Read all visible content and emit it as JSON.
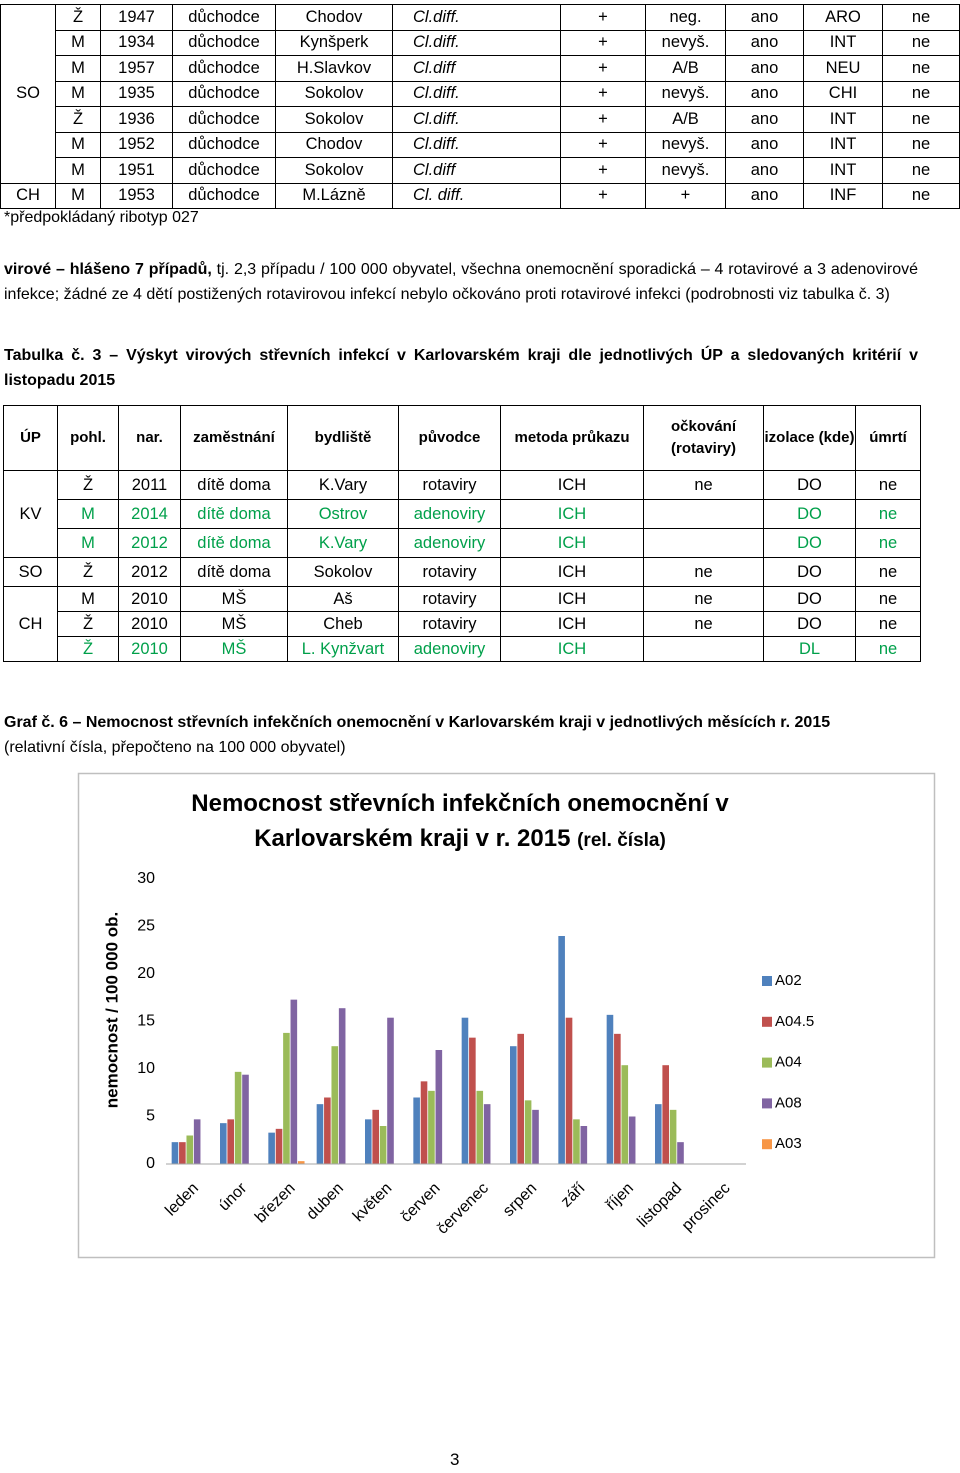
{
  "table1": {
    "groups": [
      {
        "region": "SO",
        "rows": [
          [
            "Ž",
            "1947",
            "důchodce",
            "Chodov",
            "Cl.diff.",
            "+",
            "neg.",
            "ano",
            "ARO",
            "ne"
          ],
          [
            "M",
            "1934",
            "důchodce",
            "Kynšperk",
            "Cl.diff.",
            "+",
            "nevyš.",
            "ano",
            "INT",
            "ne"
          ],
          [
            "M",
            "1957",
            "důchodce",
            "H.Slavkov",
            "Cl.diff",
            "+",
            "A/B",
            "ano",
            "NEU",
            "ne"
          ],
          [
            "M",
            "1935",
            "důchodce",
            "Sokolov",
            "Cl.diff.",
            "+",
            "nevyš.",
            "ano",
            "CHI",
            "ne"
          ],
          [
            "Ž",
            "1936",
            "důchodce",
            "Sokolov",
            "Cl.diff.",
            "+",
            "A/B",
            "ano",
            "INT",
            "ne"
          ],
          [
            "M",
            "1952",
            "důchodce",
            "Chodov",
            "Cl.diff.",
            "+",
            "nevyš.",
            "ano",
            "INT",
            "ne"
          ],
          [
            "M",
            "1951",
            "důchodce",
            "Sokolov",
            "Cl.diff",
            "+",
            "nevyš.",
            "ano",
            "INT",
            "ne"
          ]
        ]
      },
      {
        "region": "CH",
        "rows": [
          [
            "M",
            "1953",
            "důchodce",
            "M.Lázně",
            "Cl. diff.",
            "+",
            "+",
            "ano",
            "INF",
            "ne"
          ]
        ]
      }
    ]
  },
  "footnote": "*předpokládaný ribotyp 027",
  "paragraph": {
    "bold": "virové – hlášeno 7 případů,",
    "text": "tj. 2,3 případu / 100 000 obyvatel, všechna onemocnění sporadická – 4 rotavirové a 3 adenovirové infekce; žádné ze 4 dětí postižených rotavirovou infekcí nebylo očkováno proti rotavirové infekci (podrobnosti viz tabulka č. 3)"
  },
  "table2": {
    "caption": "Tabulka č. 3 – Výskyt virových střevních infekcí v Karlovarském kraji dle jednotlivých ÚP a sledovaných kritérií v listopadu 2015",
    "header": [
      "ÚP",
      "pohl.",
      "nar.",
      "zaměstnání",
      "bydliště",
      "původce",
      "metoda průkazu",
      "očkování (rotaviry)",
      "izolace (kde)",
      "úmrtí"
    ],
    "groups": [
      {
        "region": "KV",
        "rows": [
          {
            "cells": [
              "Ž",
              "2011",
              "dítě doma",
              "K.Vary",
              "rotaviry",
              "ICH",
              "ne",
              "DO",
              "ne"
            ],
            "color": "#000000"
          },
          {
            "cells": [
              "M",
              "2014",
              "dítě doma",
              "Ostrov",
              "adenoviry",
              "ICH",
              null,
              "DO",
              "ne"
            ],
            "color": "#00a04a"
          },
          {
            "cells": [
              "M",
              "2012",
              "dítě doma",
              "K.Vary",
              "adenoviry",
              "ICH",
              null,
              "DO",
              "ne"
            ],
            "color": "#00a04a"
          }
        ]
      },
      {
        "region": "SO",
        "rows": [
          {
            "cells": [
              "Ž",
              "2012",
              "dítě doma",
              "Sokolov",
              "rotaviry",
              "ICH",
              "ne",
              "DO",
              "ne"
            ],
            "color": "#000000"
          }
        ]
      },
      {
        "region": "CH",
        "rows": [
          {
            "cells": [
              "M",
              "2010",
              "MŠ",
              "Aš",
              "rotaviry",
              "ICH",
              "ne",
              "DO",
              "ne"
            ],
            "color": "#000000"
          },
          {
            "cells": [
              "Ž",
              "2010",
              "MŠ",
              "Cheb",
              "rotaviry",
              "ICH",
              "ne",
              "DO",
              "ne"
            ],
            "color": "#000000"
          },
          {
            "cells": [
              "Ž",
              "2010",
              "MŠ",
              "L. Kynžvart",
              "adenoviry",
              "ICH",
              null,
              "DL",
              "ne"
            ],
            "color": "#00a04a"
          }
        ]
      }
    ]
  },
  "graph_caption": {
    "title": "Graf č. 6 – Nemocnost střevních infekčních onemocnění v Karlovarském kraji v jednotlivých měsících r. 2015",
    "note": "(relativní čísla, přepočteno na 100 000 obyvatel)"
  },
  "chart_data": {
    "type": "bar",
    "title": "Nemocnost střevních infekčních onemocnění v Karlovarském kraji v r. 2015",
    "subtitle": "(rel. čísla)",
    "y_label": "nemocnost / 100 000 ob.",
    "categories": [
      "leden",
      "únor",
      "březen",
      "duben",
      "květen",
      "červen",
      "červenec",
      "srpen",
      "září",
      "říjen",
      "listopad",
      "prosinec"
    ],
    "series": [
      {
        "name": "A02",
        "color": "#4f81bd",
        "values": [
          2.3,
          4.3,
          3.3,
          6.3,
          4.7,
          7.0,
          15.4,
          12.4,
          24.0,
          15.7,
          6.3,
          0
        ]
      },
      {
        "name": "A04.5",
        "color": "#c0504d",
        "values": [
          2.3,
          4.7,
          3.7,
          7.0,
          5.7,
          8.7,
          13.3,
          13.7,
          15.4,
          13.7,
          10.4,
          0
        ]
      },
      {
        "name": "A04",
        "color": "#9bbb59",
        "values": [
          3.0,
          9.7,
          13.8,
          12.4,
          4.0,
          7.7,
          7.7,
          6.7,
          4.7,
          10.4,
          5.7,
          0
        ]
      },
      {
        "name": "A08",
        "color": "#8064a2",
        "values": [
          4.7,
          9.4,
          17.3,
          16.4,
          15.4,
          12.0,
          6.3,
          5.7,
          4.0,
          5.0,
          2.3,
          0
        ]
      },
      {
        "name": "A03",
        "color": "#f79646",
        "values": [
          0,
          0,
          0.3,
          0,
          0,
          0,
          0,
          0,
          0,
          0,
          0,
          0
        ]
      }
    ],
    "ylim": [
      0,
      30
    ],
    "yticks": [
      0,
      5,
      10,
      15,
      20,
      25,
      30
    ],
    "grid": false,
    "legend": "right"
  },
  "page_number": "3"
}
